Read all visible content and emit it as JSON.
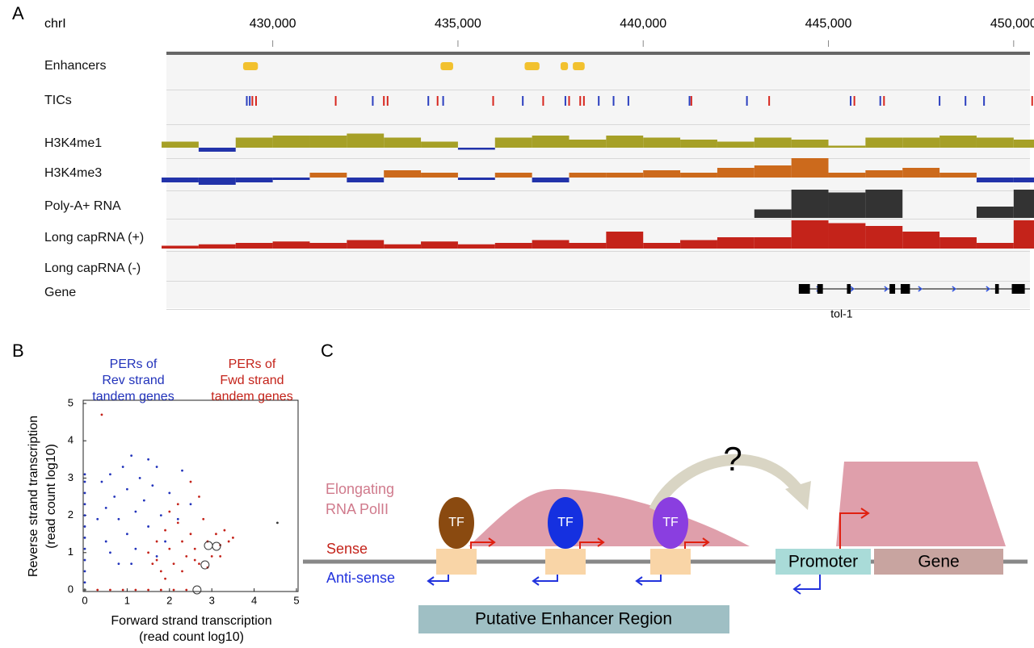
{
  "panel_labels": [
    "A",
    "B",
    "C"
  ],
  "chart_data": [
    {
      "type": "tracks",
      "chromosome": "chrI",
      "xlim": [
        427130,
        450440
      ],
      "xticks": [
        {
          "value": 430000,
          "label": "430,000"
        },
        {
          "value": 435000,
          "label": "435,000"
        },
        {
          "value": 440000,
          "label": "440,000"
        },
        {
          "value": 445000,
          "label": "445,000"
        },
        {
          "value": 450000,
          "label": "450,000"
        }
      ],
      "x": [
        427500,
        428500,
        429500,
        430500,
        431500,
        432500,
        433500,
        434500,
        435500,
        436500,
        437500,
        438500,
        439500,
        440500,
        441500,
        442500,
        443500,
        444500,
        445500,
        446500,
        447500,
        448500,
        449500,
        450500
      ],
      "tracks": [
        {
          "name": "Enhancers",
          "kind": "intervals",
          "color": "#f2c12e",
          "intervals": [
            [
              429200,
              429600
            ],
            [
              434530,
              434870
            ],
            [
              436800,
              437200
            ],
            [
              437770,
              437970
            ],
            [
              438100,
              438420
            ]
          ]
        },
        {
          "name": "TICs",
          "kind": "ticks",
          "series": [
            {
              "color": "#d7261e",
              "values": [
                429450,
                429550,
                431700,
                433000,
                433100,
                434450,
                435950,
                437300,
                438000,
                438300,
                438400,
                441300,
                443400,
                445700,
                446500,
                450500
              ]
            },
            {
              "color": "#2b3fbf",
              "values": [
                429300,
                429380,
                432700,
                434200,
                434600,
                436750,
                437900,
                438800,
                439200,
                439600,
                441250,
                442800,
                445600,
                446400,
                448000,
                448700,
                449200
              ]
            }
          ]
        },
        {
          "name": "H3K4me1",
          "kind": "signal",
          "color": "#a6a027",
          "negative_color": "#2233aa",
          "values": [
            0.3,
            -0.2,
            0.5,
            0.6,
            0.6,
            0.7,
            0.5,
            0.3,
            -0.1,
            0.5,
            0.6,
            0.4,
            0.6,
            0.5,
            0.4,
            0.3,
            0.5,
            0.4,
            0.1,
            0.5,
            0.5,
            0.6,
            0.5,
            0.4
          ]
        },
        {
          "name": "H3K4me3",
          "kind": "signal",
          "color": "#cc6a1c",
          "negative_color": "#2233aa",
          "values": [
            -0.2,
            -0.3,
            -0.2,
            -0.1,
            0.2,
            -0.2,
            0.3,
            0.2,
            -0.1,
            0.2,
            -0.2,
            0.2,
            0.2,
            0.3,
            0.2,
            0.4,
            0.5,
            0.8,
            0.2,
            0.3,
            0.4,
            0.2,
            -0.2,
            -0.2
          ]
        },
        {
          "name": "Poly-A+ RNA",
          "kind": "signal",
          "color": "#333333",
          "negative_color": "#333333",
          "values": [
            0,
            0,
            0,
            0,
            0,
            0,
            0,
            0,
            0,
            0,
            0,
            0,
            0,
            0,
            0,
            0,
            0.3,
            1.0,
            0.9,
            1.0,
            0,
            0,
            0.4,
            1.0
          ]
        },
        {
          "name": "Long capRNA (+)",
          "kind": "signal",
          "color": "#c4231a",
          "negative_color": "#c4231a",
          "values": [
            0.1,
            0.15,
            0.2,
            0.25,
            0.2,
            0.3,
            0.15,
            0.25,
            0.15,
            0.2,
            0.3,
            0.2,
            0.6,
            0.2,
            0.3,
            0.4,
            0.4,
            1.0,
            0.9,
            0.8,
            0.6,
            0.4,
            0.2,
            1.0
          ]
        },
        {
          "name": "Long capRNA (-)",
          "kind": "signal",
          "color": "#c4231a",
          "negative_color": "#c4231a",
          "values": [
            0,
            0,
            0,
            0,
            0,
            0,
            0,
            0,
            0,
            0,
            0,
            0,
            0,
            0,
            0,
            0,
            0,
            0,
            0,
            0,
            0,
            0,
            0,
            0
          ]
        },
        {
          "name": "Gene",
          "kind": "gene",
          "color": "#000000",
          "strand_color": "#3355dd",
          "span": [
            444200,
            450440
          ],
          "exons": [
            [
              444200,
              444500
            ],
            [
              444700,
              444850
            ],
            [
              445500,
              445600
            ],
            [
              446650,
              446800
            ],
            [
              446950,
              447200
            ],
            [
              449500,
              449600
            ],
            [
              449950,
              450300
            ]
          ],
          "gene_label": "tol-1"
        }
      ]
    },
    {
      "type": "scatter",
      "xlim": [
        0,
        5
      ],
      "ylim": [
        0,
        5
      ],
      "xticks": [
        0,
        1,
        2,
        3,
        4,
        5
      ],
      "yticks": [
        0,
        1,
        2,
        3,
        4,
        5
      ],
      "xlabel": [
        "Forward strand transcription",
        "(read count log10)"
      ],
      "ylabel": [
        "Reverse strand transcription",
        "(read count log10)"
      ],
      "annotations": [
        {
          "lines": [
            "PERs of",
            "Rev strand",
            "tandem genes"
          ],
          "color": "#2233bb"
        },
        {
          "lines": [
            "PERs of",
            "Fwd strand",
            "tandem genes"
          ],
          "color": "#c4231a"
        }
      ],
      "series": [
        {
          "color": "#2233bb",
          "marker": "dot",
          "x": [
            0,
            0,
            0,
            0,
            0,
            0,
            0,
            0,
            0,
            0,
            0,
            0.4,
            0.5,
            0.5,
            0.6,
            0.7,
            0.8,
            0.8,
            0.9,
            1.0,
            1.0,
            1.1,
            1.2,
            1.2,
            1.3,
            1.4,
            1.5,
            1.5,
            1.6,
            1.7,
            1.8,
            1.9,
            2.0,
            2.2,
            2.3,
            2.5,
            1.1,
            0.6,
            0.3,
            1.7
          ],
          "values": [
            0.2,
            0.5,
            0.8,
            1.1,
            1.4,
            1.7,
            2.0,
            2.3,
            2.6,
            2.9,
            3.1,
            2.9,
            2.2,
            1.3,
            3.1,
            2.5,
            1.9,
            0.7,
            3.3,
            2.7,
            1.5,
            3.6,
            2.1,
            1.1,
            3.0,
            2.4,
            3.5,
            1.7,
            2.8,
            3.3,
            2.0,
            1.3,
            2.6,
            1.9,
            3.2,
            2.3,
            0.7,
            1.0,
            1.9,
            0.9
          ]
        },
        {
          "color": "#c4231a",
          "marker": "dot",
          "x": [
            0.4,
            0.3,
            0.6,
            0.9,
            1.2,
            1.5,
            1.8,
            2.1,
            2.4,
            1.5,
            1.6,
            1.7,
            1.8,
            1.9,
            2.0,
            2.1,
            2.2,
            2.3,
            2.4,
            2.5,
            2.6,
            2.7,
            2.8,
            2.9,
            3.0,
            3.1,
            3.2,
            3.3,
            3.4,
            3.5,
            2.2,
            2.5,
            2.7,
            2.0,
            1.7,
            2.6,
            2.3,
            1.9,
            2.9,
            3.2
          ],
          "values": [
            4.7,
            0,
            0,
            0,
            0,
            0,
            0,
            0,
            0,
            1.0,
            0.7,
            1.3,
            0.5,
            1.6,
            1.1,
            0.7,
            1.8,
            1.3,
            0.9,
            1.5,
            1.1,
            0.7,
            1.9,
            1.3,
            0.9,
            1.5,
            1.2,
            1.6,
            1.3,
            1.4,
            2.3,
            2.9,
            2.5,
            2.1,
            0.8,
            0.8,
            0.5,
            0.3,
            0.6,
            0.9
          ]
        },
        {
          "color": "#333333",
          "marker": "dot",
          "x": [
            4.55
          ],
          "values": [
            1.8
          ]
        },
        {
          "color": "#333333",
          "marker": "circle",
          "x": [
            2.65,
            2.84,
            2.92,
            3.11
          ],
          "values": [
            0,
            0.67,
            1.19,
            1.17
          ]
        }
      ]
    }
  ],
  "diagram": {
    "question": "?",
    "polymerase_label": [
      "Elongating",
      "RNA PolII"
    ],
    "sense": "Sense",
    "antisense": "Anti-sense",
    "factors": [
      "TF",
      "TF",
      "TF"
    ],
    "promoter": "Promoter",
    "gene": "Gene",
    "enhancer_region": "Putative Enhancer Region"
  }
}
